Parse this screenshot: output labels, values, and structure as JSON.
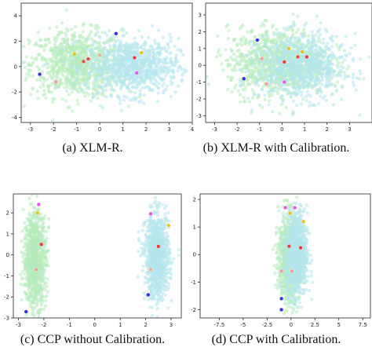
{
  "colors": {
    "cloud_a": "#b7ebbb",
    "cloud_b": "#b4e5ec",
    "frame": "#222222"
  },
  "chart_data": [
    {
      "type": "scatter",
      "caption": "(a)  XLM-R.",
      "xlim": [
        -3.4,
        4.0
      ],
      "ylim": [
        -4.4,
        5.0
      ],
      "xticks": [
        -3,
        -2,
        -1,
        0,
        1,
        2,
        3,
        4
      ],
      "yticks": [
        -4,
        -2,
        0,
        2,
        4
      ],
      "grid": false,
      "clusters": [
        {
          "color": "#b7ebbb",
          "cx": -1.0,
          "cy": 0.2,
          "sx": 1.0,
          "sy": 1.3,
          "n": 900
        },
        {
          "color": "#b4e5ec",
          "cx": 1.4,
          "cy": 0.0,
          "sx": 1.0,
          "sy": 1.1,
          "n": 900
        }
      ],
      "highlight_points": [
        {
          "x": 0.7,
          "y": 2.6,
          "color": "#3434e6"
        },
        {
          "x": -1.1,
          "y": 1.0,
          "color": "#e6c21e"
        },
        {
          "x": 1.8,
          "y": 1.1,
          "color": "#e6c21e"
        },
        {
          "x": -0.7,
          "y": 0.4,
          "color": "#e64a3c"
        },
        {
          "x": -0.5,
          "y": 0.6,
          "color": "#e64a3c"
        },
        {
          "x": 1.5,
          "y": 0.7,
          "color": "#e63c3c"
        },
        {
          "x": 0.0,
          "y": 0.9,
          "color": "#f0b08c"
        },
        {
          "x": -2.6,
          "y": -0.6,
          "color": "#3434e6"
        },
        {
          "x": -1.9,
          "y": -1.2,
          "color": "#f09a9a"
        },
        {
          "x": 1.6,
          "y": -0.5,
          "color": "#e655e6"
        }
      ]
    },
    {
      "type": "scatter",
      "caption": "(b)  XLM-R with Calibration.",
      "xlim": [
        -3.4,
        4.0
      ],
      "ylim": [
        -3.4,
        3.7
      ],
      "xticks": [
        -3,
        -2,
        -1,
        0,
        1,
        2,
        3
      ],
      "yticks": [
        -3,
        -2,
        -1,
        0,
        1,
        2,
        3
      ],
      "grid": false,
      "clusters": [
        {
          "color": "#b7ebbb",
          "cx": -0.2,
          "cy": 0.2,
          "sx": 1.1,
          "sy": 1.0,
          "n": 1000
        },
        {
          "color": "#b4e5ec",
          "cx": 0.9,
          "cy": -0.1,
          "sx": 1.0,
          "sy": 0.95,
          "n": 800
        }
      ],
      "highlight_points": [
        {
          "x": -1.1,
          "y": 1.5,
          "color": "#3434e6"
        },
        {
          "x": 0.3,
          "y": 1.0,
          "color": "#e6c21e"
        },
        {
          "x": 0.9,
          "y": 0.8,
          "color": "#e6c21e"
        },
        {
          "x": -0.9,
          "y": 0.4,
          "color": "#f09a9a"
        },
        {
          "x": 0.1,
          "y": 0.2,
          "color": "#e63c3c"
        },
        {
          "x": 0.7,
          "y": 0.5,
          "color": "#e64a3c"
        },
        {
          "x": 1.1,
          "y": 0.5,
          "color": "#e63c3c"
        },
        {
          "x": -1.7,
          "y": -0.8,
          "color": "#3434e6"
        },
        {
          "x": -0.7,
          "y": -1.1,
          "color": "#f09a9a"
        },
        {
          "x": 0.1,
          "y": -1.0,
          "color": "#e655e6"
        }
      ]
    },
    {
      "type": "scatter",
      "caption": "(c)  CCP without Calibration.",
      "xlim": [
        -3.2,
        3.4
      ],
      "ylim": [
        -3.0,
        2.9
      ],
      "xticks": [
        -3,
        -2,
        -1,
        0,
        1,
        2,
        3
      ],
      "yticks": [
        -3,
        -2,
        -1,
        0,
        1,
        2
      ],
      "grid": false,
      "clusters": [
        {
          "color": "#b7ebbb",
          "cx": -2.35,
          "cy": -0.2,
          "sx": 0.22,
          "sy": 1.1,
          "n": 900
        },
        {
          "color": "#b4e5ec",
          "cx": 2.45,
          "cy": -0.1,
          "sx": 0.24,
          "sy": 1.0,
          "n": 900
        }
      ],
      "highlight_points": [
        {
          "x": -2.2,
          "y": 2.4,
          "color": "#e655e6"
        },
        {
          "x": -2.25,
          "y": 2.0,
          "color": "#e6c21e"
        },
        {
          "x": -2.1,
          "y": 0.5,
          "color": "#e63c3c"
        },
        {
          "x": -2.3,
          "y": -0.7,
          "color": "#f09a9a"
        },
        {
          "x": -2.7,
          "y": -2.7,
          "color": "#3434e6"
        },
        {
          "x": 2.2,
          "y": 1.95,
          "color": "#e655e6"
        },
        {
          "x": 2.9,
          "y": 1.4,
          "color": "#e6c21e"
        },
        {
          "x": 2.5,
          "y": 0.4,
          "color": "#e63c3c"
        },
        {
          "x": 2.2,
          "y": -0.7,
          "color": "#f0b08c"
        },
        {
          "x": 2.1,
          "y": -1.9,
          "color": "#3434e6"
        }
      ]
    },
    {
      "type": "scatter",
      "caption": "(d)  CCP with Calibration.",
      "xlim": [
        -9.5,
        8.3
      ],
      "ylim": [
        -2.3,
        2.2
      ],
      "xticks": [
        -7.5,
        -5.0,
        -2.5,
        0.0,
        2.5,
        5.0,
        7.5
      ],
      "yticks": [
        -2,
        -1,
        0,
        1,
        2
      ],
      "grid": false,
      "clusters": [
        {
          "color": "#b7ebbb",
          "cx": -0.2,
          "cy": -0.1,
          "sx": 0.55,
          "sy": 0.8,
          "n": 900
        },
        {
          "color": "#b4e5ec",
          "cx": 0.6,
          "cy": 0.0,
          "sx": 0.55,
          "sy": 0.75,
          "n": 900
        }
      ],
      "highlight_points": [
        {
          "x": -0.6,
          "y": 1.7,
          "color": "#e655e6"
        },
        {
          "x": 0.4,
          "y": 1.7,
          "color": "#e655e6"
        },
        {
          "x": -0.1,
          "y": 1.5,
          "color": "#e6c21e"
        },
        {
          "x": 1.3,
          "y": 1.2,
          "color": "#e6c21e"
        },
        {
          "x": -0.2,
          "y": 0.3,
          "color": "#e63c3c"
        },
        {
          "x": 1.0,
          "y": 0.25,
          "color": "#e63c3c"
        },
        {
          "x": -1.0,
          "y": -0.6,
          "color": "#f09a9a"
        },
        {
          "x": 0.1,
          "y": -0.6,
          "color": "#f09a9a"
        },
        {
          "x": -1.0,
          "y": -1.6,
          "color": "#3434e6"
        },
        {
          "x": -1.0,
          "y": -2.0,
          "color": "#3434e6"
        }
      ]
    }
  ]
}
